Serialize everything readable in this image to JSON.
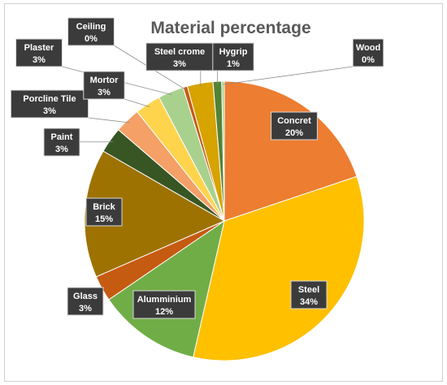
{
  "chart_data": {
    "type": "pie",
    "title": "Material percentage",
    "slices": [
      {
        "label": "Concret",
        "value": 20,
        "value_label": "20%",
        "color": "#ED7D31"
      },
      {
        "label": "Steel",
        "value": 34,
        "value_label": "34%",
        "color": "#FFC000"
      },
      {
        "label": "Alumminium",
        "value": 12,
        "value_label": "12%",
        "color": "#70AD47"
      },
      {
        "label": "Glass",
        "value": 3,
        "value_label": "3%",
        "color": "#C55A11"
      },
      {
        "label": "Brick",
        "value": 15,
        "value_label": "15%",
        "color": "#9E7200"
      },
      {
        "label": "Paint",
        "value": 3,
        "value_label": "3%",
        "color": "#375623"
      },
      {
        "label": "Porcline Tile",
        "value": 3,
        "value_label": "3%",
        "color": "#F4A067"
      },
      {
        "label": "Mortor",
        "value": 3,
        "value_label": "3%",
        "color": "#FFD44D"
      },
      {
        "label": "Plaster",
        "value": 3,
        "value_label": "3%",
        "color": "#A9D18E"
      },
      {
        "label": "Ceiling",
        "value": 0.5,
        "value_label": "0%",
        "color": "#C55A11"
      },
      {
        "label": "Steel crome",
        "value": 3,
        "value_label": "3%",
        "color": "#D6A300"
      },
      {
        "label": "Hygrip",
        "value": 1,
        "value_label": "1%",
        "color": "#548235"
      },
      {
        "label": "Wood",
        "value": 0.3,
        "value_label": "0%",
        "color": "#A9D18E"
      }
    ]
  }
}
